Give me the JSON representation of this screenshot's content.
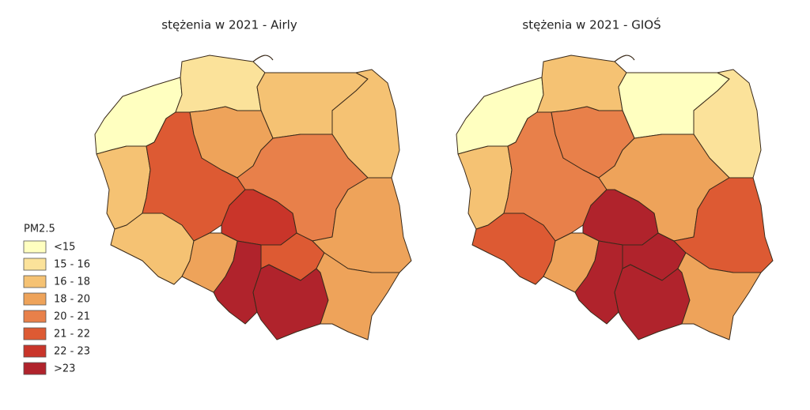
{
  "maps": [
    {
      "title": "stężenia w 2021 - Airly",
      "regions": [
        "#ffffc0",
        "#fbe29a",
        "#f5c273",
        "#f5c273",
        "#f5c273",
        "#dd5a33",
        "#eea35a",
        "#e8804a",
        "#c9352a",
        "#f5c273",
        "#eea35a",
        "#b0232c",
        "#dd5a33",
        "#b0232c",
        "#eea35a",
        "#eea35a"
      ]
    },
    {
      "title": "stężenia w 2021 - GIOŚ",
      "regions": [
        "#ffffc0",
        "#f5c273",
        "#ffffc0",
        "#fbe29a",
        "#f5c273",
        "#e8804a",
        "#e8804a",
        "#eea35a",
        "#b0232c",
        "#dd5a33",
        "#eea35a",
        "#b0232c",
        "#b0232c",
        "#b0232c",
        "#dd5a33",
        "#eea35a"
      ]
    }
  ],
  "legend": {
    "title": "PM2.5",
    "items": [
      {
        "label": "<15",
        "color": "#ffffc0"
      },
      {
        "label": "15 - 16",
        "color": "#fbe29a"
      },
      {
        "label": "16 - 18",
        "color": "#f5c273"
      },
      {
        "label": "18 - 20",
        "color": "#eea35a"
      },
      {
        "label": "20 - 21",
        "color": "#e8804a"
      },
      {
        "label": "21 - 22",
        "color": "#dd5a33"
      },
      {
        "label": "22 - 23",
        "color": "#c9352a"
      },
      {
        "label": ">23",
        "color": "#b0232c"
      }
    ]
  }
}
